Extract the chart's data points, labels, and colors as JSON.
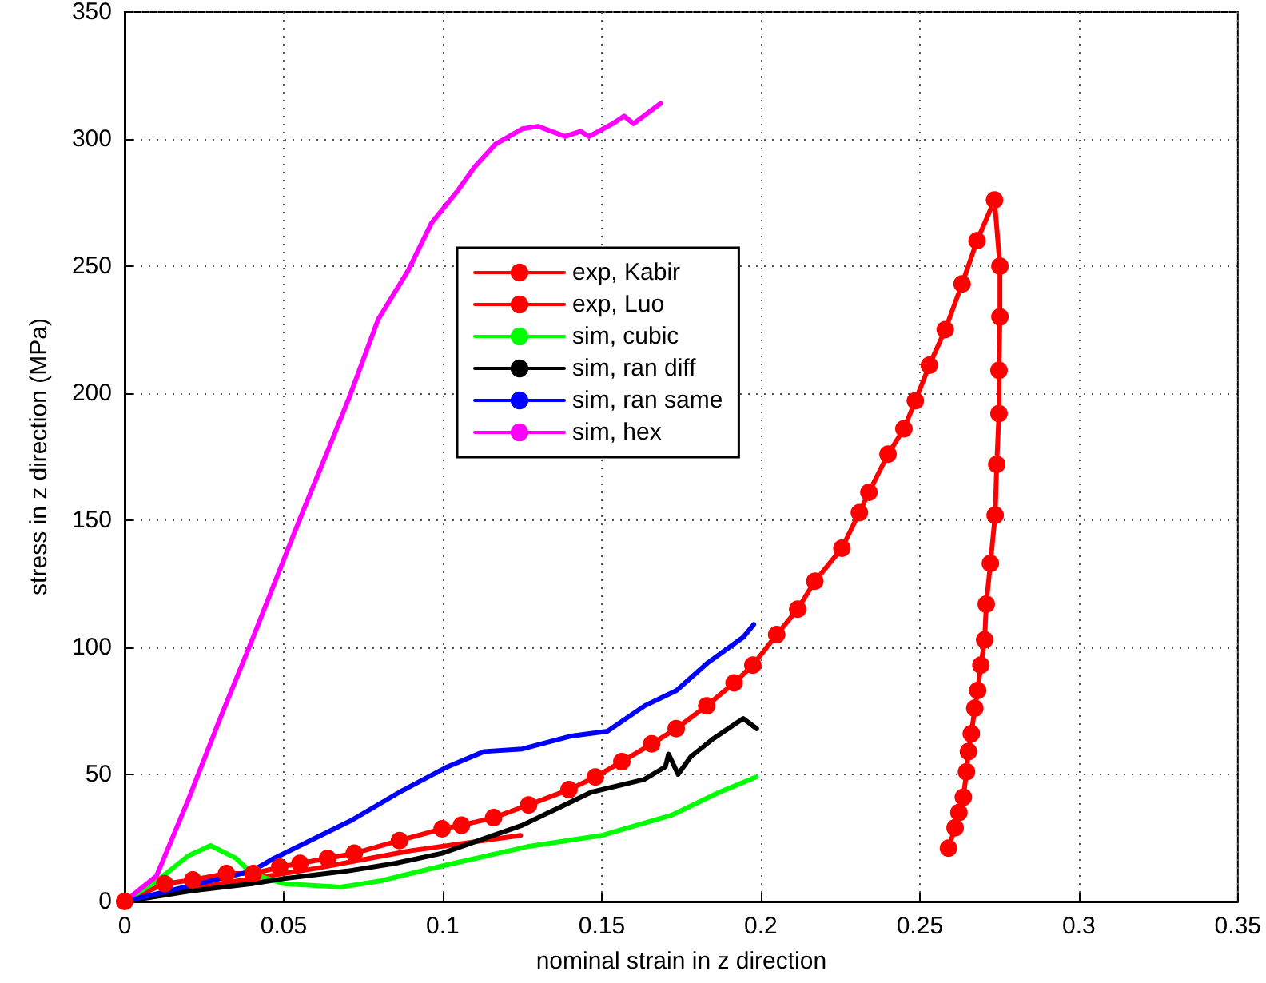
{
  "chart_data": {
    "type": "line",
    "xlabel": "nominal strain in z direction",
    "ylabel": "stress in z direction (MPa)",
    "xlim": [
      0,
      0.35
    ],
    "xticks": [
      0,
      0.05,
      0.1,
      0.15,
      0.2,
      0.25,
      0.3,
      0.35
    ],
    "ylim": [
      0,
      350
    ],
    "yticks": [
      0,
      50,
      100,
      150,
      200,
      250,
      300,
      350
    ],
    "grid": true,
    "legend": "top",
    "marker": "none",
    "line_style": "solid",
    "series": [
      {
        "name": "exp, Kabir",
        "color": "#ff0000",
        "x": [
          0,
          0.03,
          0.06,
          0.09,
          0.1245
        ],
        "values": [
          0,
          7,
          13,
          20,
          26
        ]
      },
      {
        "name": "exp, Luo",
        "color": "#ff0000",
        "marker": "circle",
        "x": [
          0,
          0.0126,
          0.0214,
          0.032,
          0.0404,
          0.0487,
          0.0551,
          0.0638,
          0.0722,
          0.0864,
          0.0998,
          0.1059,
          0.116,
          0.127,
          0.1397,
          0.148,
          0.1563,
          0.1657,
          0.1734,
          0.183,
          0.1916,
          0.1975,
          0.205,
          0.2116,
          0.217,
          0.2255,
          0.231,
          0.234,
          0.24,
          0.245,
          0.2486,
          0.253,
          0.258,
          0.2633,
          0.268,
          0.2735,
          0.2752,
          0.2752,
          0.2749,
          0.2749,
          0.2742,
          0.2737,
          0.2722,
          0.2709,
          0.2704,
          0.2692,
          0.2682,
          0.2673,
          0.2662,
          0.2653,
          0.2647,
          0.2637,
          0.2623,
          0.2611,
          0.259
        ],
        "values": [
          0,
          7,
          8.5,
          11,
          11,
          13.5,
          15,
          17,
          19,
          24,
          28.6,
          30,
          33,
          38,
          44,
          49,
          55,
          62,
          68,
          77,
          86,
          93,
          105,
          115,
          126,
          139,
          153,
          161,
          176,
          186,
          197,
          211,
          225,
          243,
          260,
          276,
          250,
          230,
          209,
          192,
          172,
          152,
          133,
          117,
          103,
          93,
          83,
          76,
          66,
          59,
          51,
          41,
          35,
          29,
          21
        ]
      },
      {
        "name": "sim, cubic",
        "color": "#00ff00",
        "x": [
          0,
          0.01,
          0.02,
          0.027,
          0.035,
          0.04,
          0.05,
          0.068,
          0.08,
          0.0998,
          0.1266,
          0.15,
          0.172,
          0.187,
          0.1985
        ],
        "values": [
          0,
          8,
          18,
          22,
          17,
          11,
          7,
          5.7,
          8,
          14,
          21.6,
          26,
          34,
          43,
          49
        ]
      },
      {
        "name": "sim, ran diff",
        "color": "#000000",
        "x": [
          0,
          0.02,
          0.04,
          0.05,
          0.07,
          0.085,
          0.0998,
          0.125,
          0.1467,
          0.1633,
          0.17,
          0.171,
          0.174,
          0.178,
          0.185,
          0.1945,
          0.1987
        ],
        "values": [
          0,
          4,
          7,
          9,
          12,
          15,
          19,
          30,
          43,
          48,
          53,
          58,
          50,
          57,
          64,
          72,
          68
        ]
      },
      {
        "name": "sim, ran same",
        "color": "#0000ff",
        "x": [
          0,
          0.02,
          0.04,
          0.0462,
          0.0714,
          0.0864,
          0.1015,
          0.113,
          0.125,
          0.14,
          0.1518,
          0.1635,
          0.1735,
          0.1834,
          0.1945,
          0.1978
        ],
        "values": [
          0,
          6,
          12,
          16.5,
          32,
          43,
          53,
          59,
          60,
          65,
          67,
          77,
          83,
          94,
          104,
          109
        ]
      },
      {
        "name": "sim, hex",
        "color": "#ff00ff",
        "x": [
          0,
          0.01,
          0.02,
          0.03,
          0.0404,
          0.0546,
          0.0647,
          0.0705,
          0.0797,
          0.089,
          0.0965,
          0.1049,
          0.11,
          0.1166,
          0.125,
          0.13,
          0.1384,
          0.1434,
          0.146,
          0.1534,
          0.157,
          0.16,
          0.1685
        ],
        "values": [
          0,
          10,
          40,
          72,
          104,
          149,
          180,
          198,
          229,
          248,
          267,
          280,
          289,
          298,
          304,
          305,
          301,
          303,
          301,
          306,
          309,
          306,
          314
        ]
      }
    ]
  }
}
